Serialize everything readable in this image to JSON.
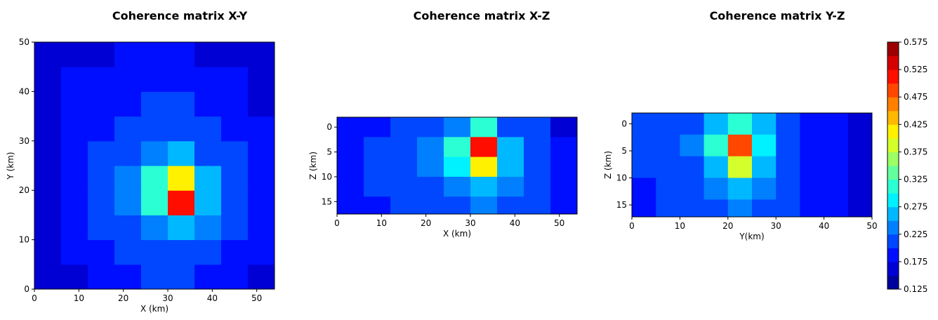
{
  "chart_data": [
    {
      "type": "contour",
      "title": "Coherence matrix X-Y",
      "x_label": "X (km)",
      "y_label": "Y (km)",
      "colormap": "jet",
      "clim": [
        0.125,
        0.575
      ],
      "xlim": [
        0,
        54
      ],
      "ylim": [
        0,
        50
      ],
      "xticks": [
        0,
        10,
        20,
        30,
        40,
        50
      ],
      "yticks": [
        0,
        10,
        20,
        30,
        40,
        50
      ],
      "x": [
        3,
        9,
        15,
        21,
        27,
        33,
        39,
        45,
        51
      ],
      "y": [
        2.5,
        7.5,
        12.5,
        17.5,
        22.5,
        27.5,
        32.5,
        37.5,
        42.5,
        47.5
      ],
      "z": [
        [
          0.16,
          0.17,
          0.18,
          0.19,
          0.2,
          0.2,
          0.19,
          0.18,
          0.17
        ],
        [
          0.16,
          0.18,
          0.19,
          0.2,
          0.21,
          0.22,
          0.21,
          0.19,
          0.18
        ],
        [
          0.17,
          0.19,
          0.2,
          0.21,
          0.24,
          0.25,
          0.23,
          0.2,
          0.18
        ],
        [
          0.17,
          0.19,
          0.21,
          0.24,
          0.3,
          0.5,
          0.26,
          0.21,
          0.19
        ],
        [
          0.17,
          0.19,
          0.21,
          0.24,
          0.3,
          0.42,
          0.27,
          0.21,
          0.19
        ],
        [
          0.17,
          0.18,
          0.2,
          0.21,
          0.24,
          0.27,
          0.22,
          0.2,
          0.18
        ],
        [
          0.17,
          0.18,
          0.19,
          0.2,
          0.21,
          0.22,
          0.2,
          0.19,
          0.18
        ],
        [
          0.17,
          0.18,
          0.19,
          0.19,
          0.2,
          0.2,
          0.19,
          0.18,
          0.17
        ],
        [
          0.17,
          0.18,
          0.18,
          0.19,
          0.19,
          0.19,
          0.18,
          0.18,
          0.17
        ],
        [
          0.16,
          0.17,
          0.17,
          0.18,
          0.18,
          0.18,
          0.17,
          0.17,
          0.16
        ]
      ]
    },
    {
      "type": "contour",
      "title": "Coherence matrix X-Z",
      "x_label": "X (km)",
      "y_label": "Z (km)",
      "colormap": "jet",
      "clim": [
        0.125,
        0.575
      ],
      "xlim": [
        0,
        54
      ],
      "ylim": [
        17.5,
        -2
      ],
      "xticks": [
        0,
        10,
        20,
        30,
        40,
        50
      ],
      "yticks": [
        0,
        5,
        10,
        15
      ],
      "x": [
        3,
        9,
        15,
        21,
        27,
        33,
        39,
        45,
        51
      ],
      "y": [
        0,
        4,
        8,
        12,
        16
      ],
      "z": [
        [
          0.19,
          0.19,
          0.2,
          0.21,
          0.24,
          0.3,
          0.22,
          0.2,
          0.17
        ],
        [
          0.19,
          0.2,
          0.21,
          0.23,
          0.3,
          0.5,
          0.26,
          0.21,
          0.18
        ],
        [
          0.19,
          0.2,
          0.21,
          0.23,
          0.28,
          0.4,
          0.25,
          0.21,
          0.18
        ],
        [
          0.19,
          0.2,
          0.2,
          0.22,
          0.24,
          0.27,
          0.23,
          0.2,
          0.18
        ],
        [
          0.18,
          0.19,
          0.2,
          0.21,
          0.22,
          0.23,
          0.21,
          0.2,
          0.18
        ]
      ]
    },
    {
      "type": "contour",
      "title": "Coherence matrix Y-Z",
      "x_label": "Y(km)",
      "y_label": "Z (km)",
      "colormap": "jet",
      "clim": [
        0.125,
        0.575
      ],
      "xlim": [
        0,
        50
      ],
      "ylim": [
        17.2,
        -2
      ],
      "xticks": [
        0,
        10,
        20,
        30,
        40,
        50
      ],
      "yticks": [
        0,
        5,
        10,
        15
      ],
      "x": [
        2.5,
        7.5,
        12.5,
        17.5,
        22.5,
        27.5,
        32.5,
        37.5,
        42.5,
        47.5
      ],
      "y": [
        0,
        4,
        8,
        12,
        16
      ],
      "z": [
        [
          0.2,
          0.21,
          0.22,
          0.25,
          0.3,
          0.25,
          0.2,
          0.19,
          0.18,
          0.17
        ],
        [
          0.2,
          0.21,
          0.23,
          0.3,
          0.48,
          0.28,
          0.21,
          0.19,
          0.18,
          0.16
        ],
        [
          0.2,
          0.21,
          0.22,
          0.27,
          0.38,
          0.26,
          0.2,
          0.19,
          0.18,
          0.16
        ],
        [
          0.19,
          0.2,
          0.21,
          0.24,
          0.27,
          0.23,
          0.2,
          0.19,
          0.18,
          0.17
        ],
        [
          0.19,
          0.2,
          0.21,
          0.22,
          0.23,
          0.21,
          0.2,
          0.19,
          0.18,
          0.17
        ]
      ],
      "cticks": [
        0.125,
        0.175,
        0.225,
        0.275,
        0.325,
        0.375,
        0.425,
        0.475,
        0.525,
        0.575
      ]
    }
  ]
}
